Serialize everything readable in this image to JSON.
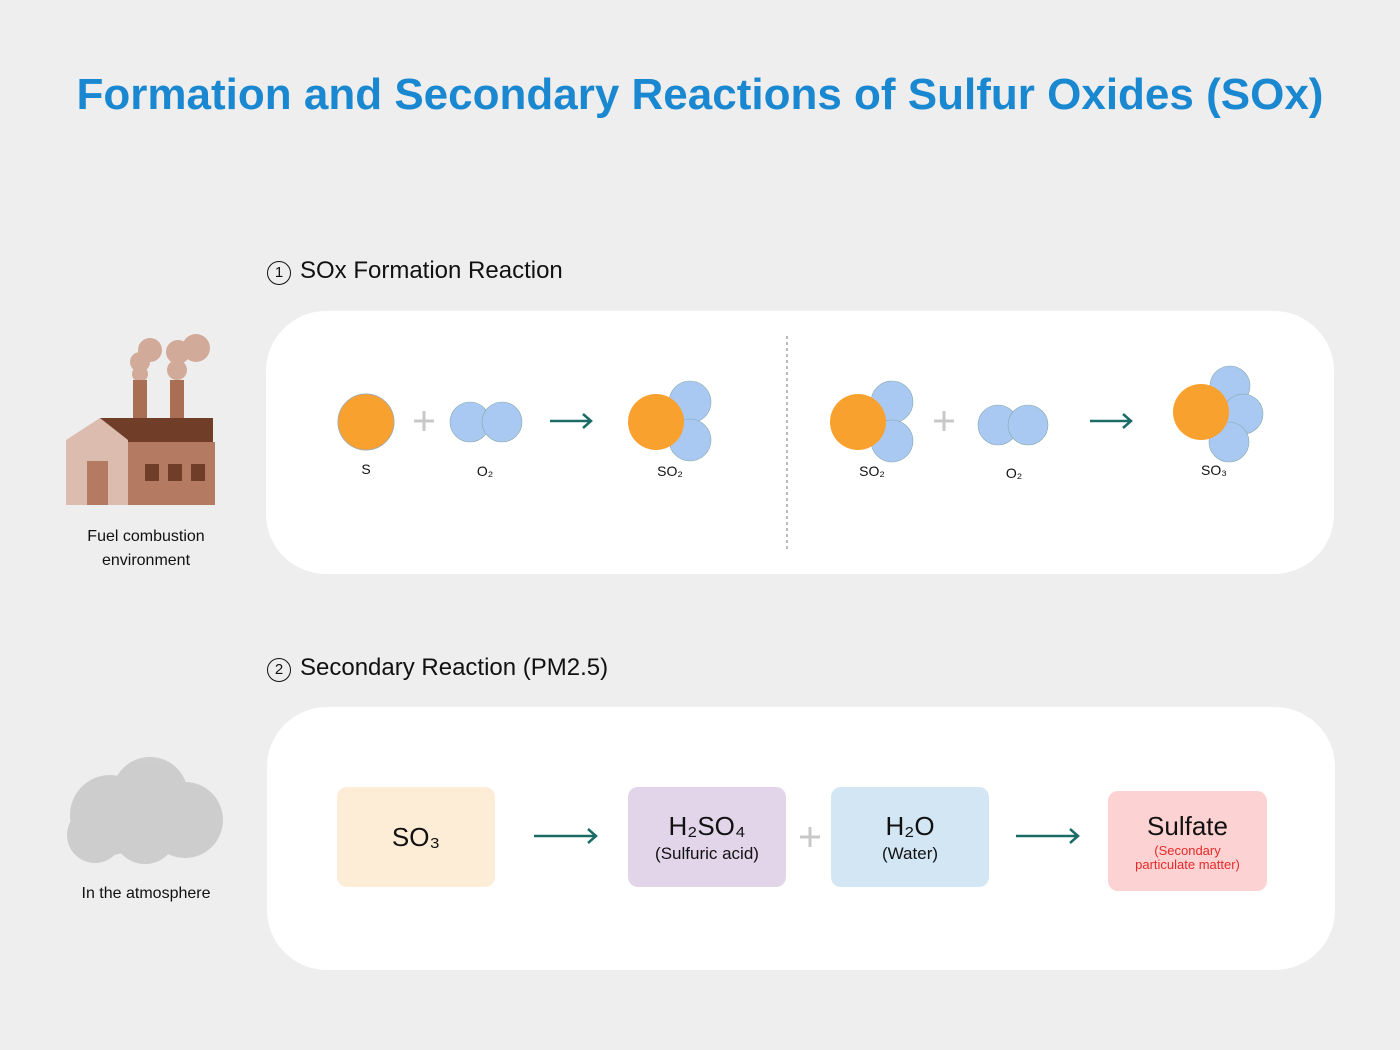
{
  "title": "Formation and Secondary Reactions of Sulfur Oxides (SOx)",
  "factory": {
    "label": "Fuel combustion environment"
  },
  "atmosphere": {
    "label": "In the atmosphere"
  },
  "sections": [
    {
      "number": "1",
      "title": "SOx Formation Reaction",
      "reactions": [
        {
          "reactants": [
            "S",
            "O₂"
          ],
          "product": "SO₂"
        },
        {
          "reactants": [
            "SO₂",
            "O₂"
          ],
          "product": "SO₃"
        }
      ]
    },
    {
      "number": "2",
      "title": "Secondary Reaction (PM2.5)",
      "steps": [
        {
          "label": "SO₃"
        },
        {
          "label": "H₂SO₄",
          "note": "(Sulfuric acid)"
        },
        {
          "label": "H₂O",
          "note": "(Water)"
        },
        {
          "label": "Sulfate",
          "note": "(Secondary particulate matter)"
        }
      ]
    }
  ]
}
